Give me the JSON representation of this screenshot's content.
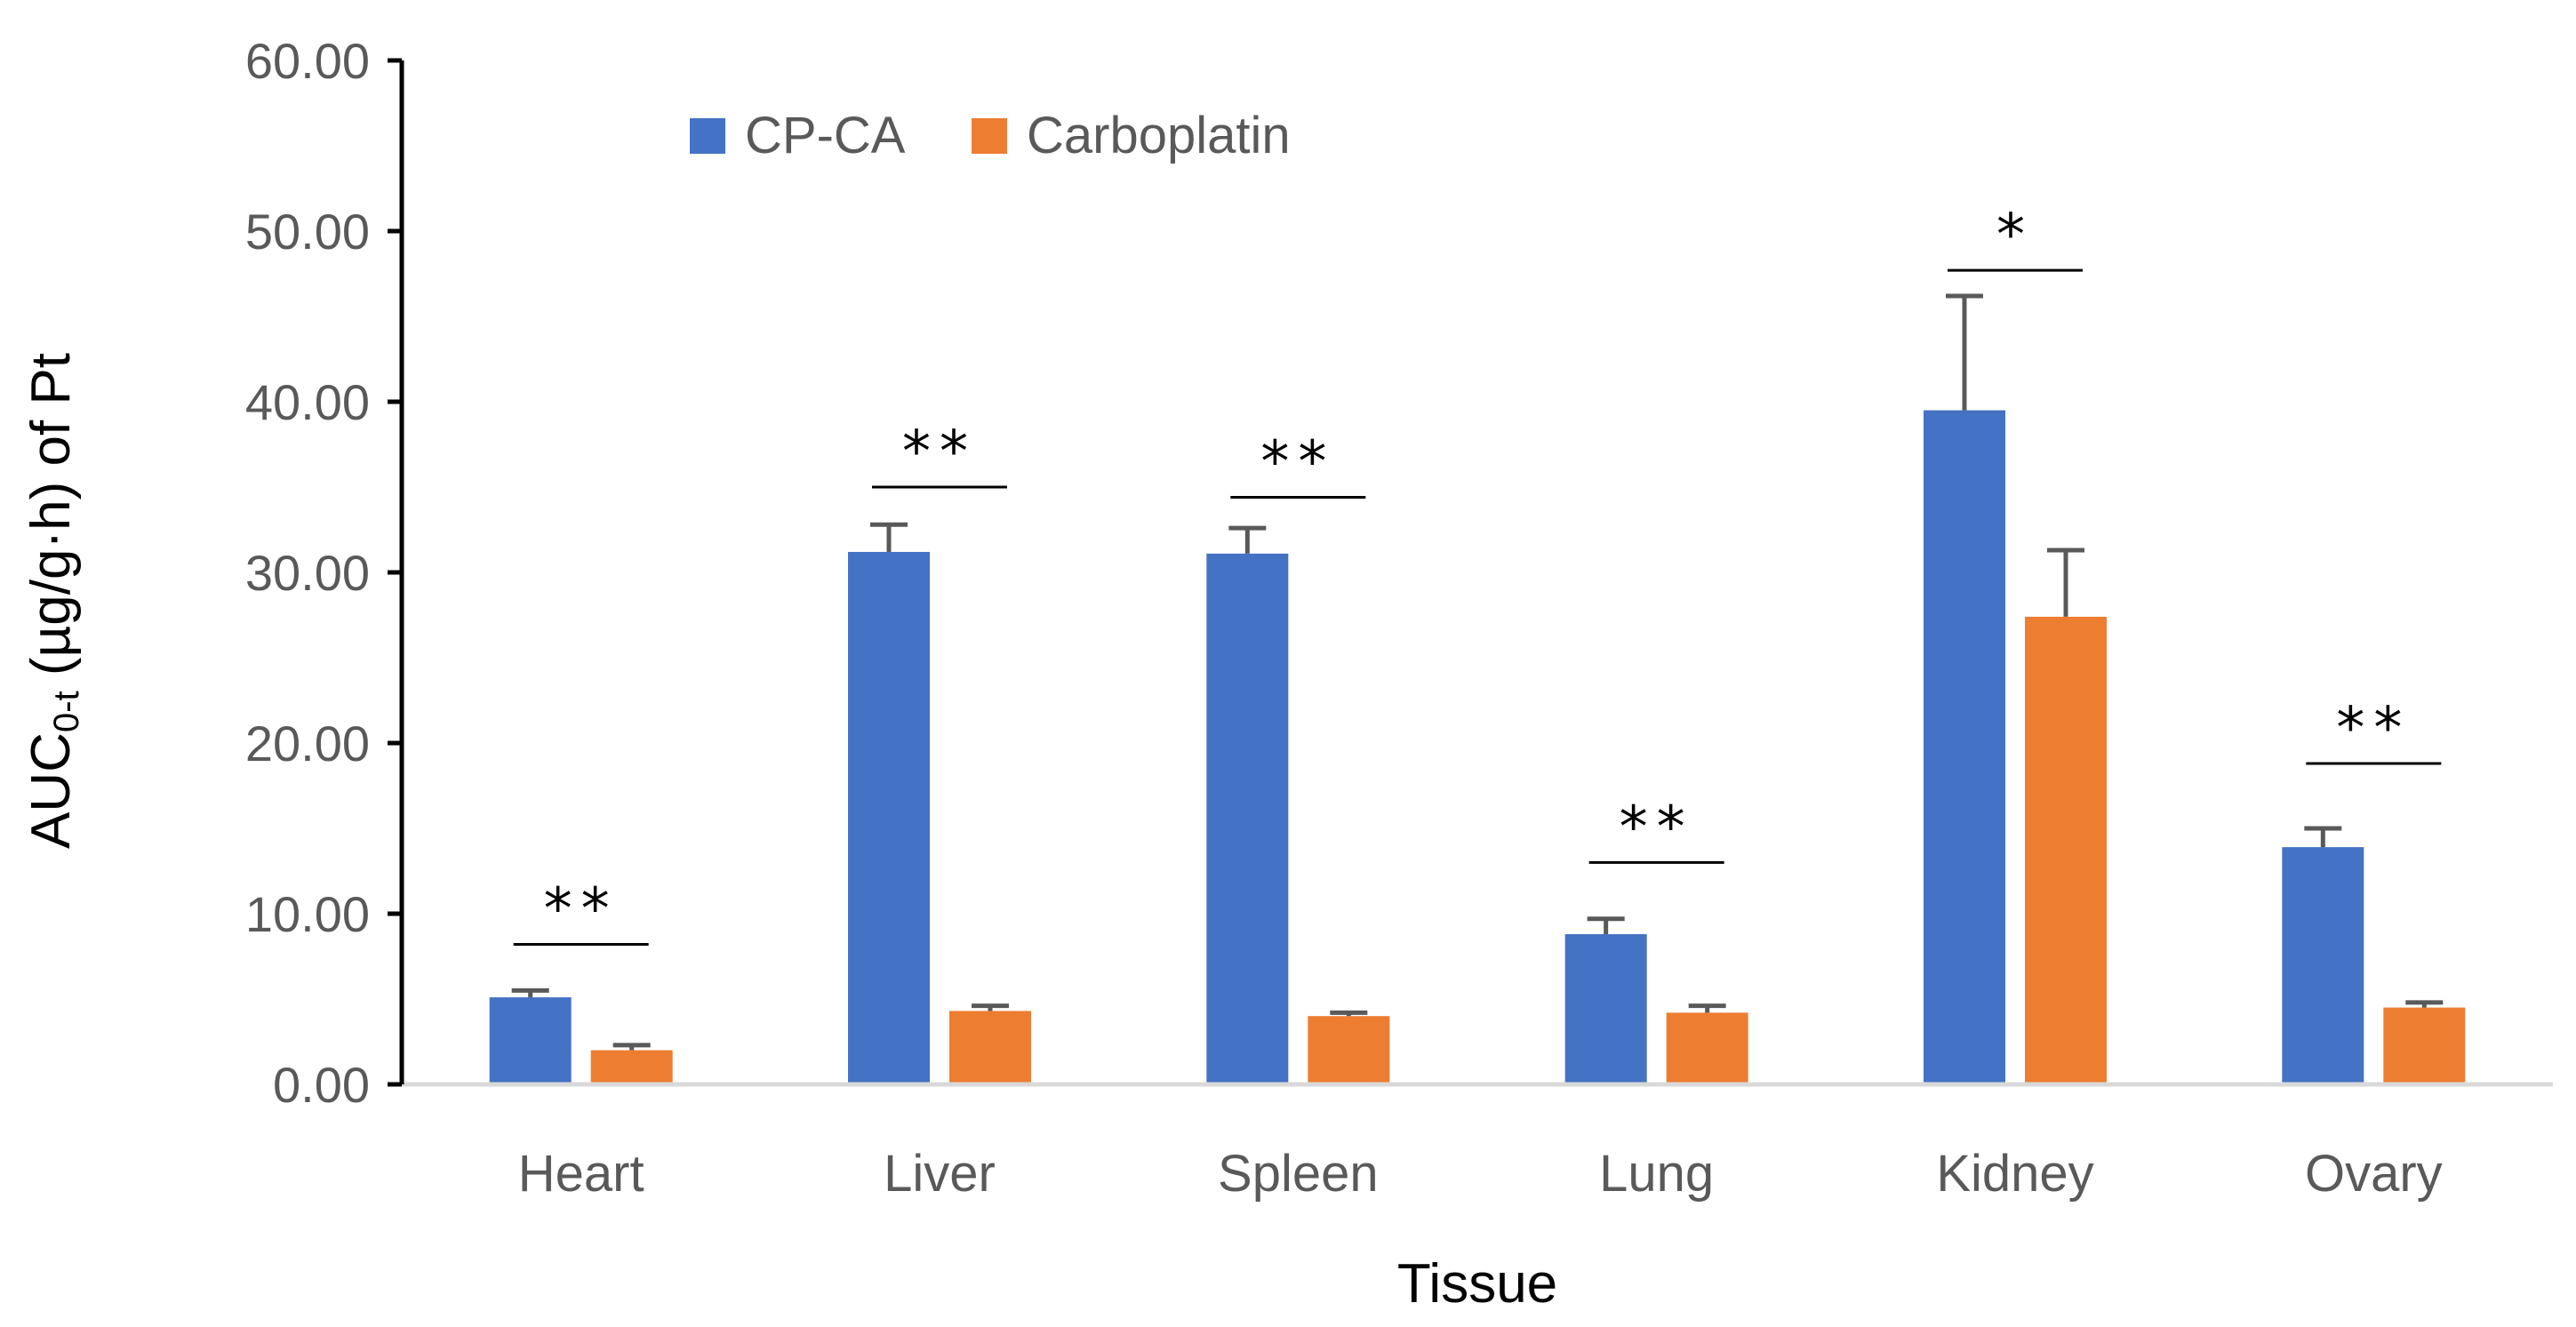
{
  "chart_data": {
    "type": "bar",
    "title": "",
    "xlabel": "Tissue",
    "ylabel": "AUC",
    "ylabel_subscript": "0-t",
    "ylabel_suffix": " (µg/g·h) of Pt",
    "ylim": [
      0,
      60
    ],
    "yticks": [
      "0.00",
      "10.00",
      "20.00",
      "30.00",
      "40.00",
      "50.00",
      "60.00"
    ],
    "grid": false,
    "legend_position": "top-left",
    "categories": [
      "Heart",
      "Liver",
      "Spleen",
      "Lung",
      "Kidney",
      "Ovary"
    ],
    "series": [
      {
        "name": "CP-CA",
        "color": "#4472C4",
        "values": [
          5.1,
          31.2,
          31.1,
          8.8,
          39.5,
          13.9
        ],
        "errors": [
          0.4,
          1.6,
          1.5,
          0.9,
          6.7,
          1.1
        ]
      },
      {
        "name": "Carboplatin",
        "color": "#ED7D31",
        "values": [
          2.0,
          4.3,
          4.0,
          4.2,
          27.4,
          4.5
        ],
        "errors": [
          0.3,
          0.3,
          0.2,
          0.4,
          3.9,
          0.3
        ]
      }
    ],
    "significance": [
      {
        "category": "Heart",
        "label": "**",
        "level": 8.2
      },
      {
        "category": "Liver",
        "label": "**",
        "level": 35.0
      },
      {
        "category": "Spleen",
        "label": "**",
        "level": 34.4
      },
      {
        "category": "Lung",
        "label": "**",
        "level": 13.0
      },
      {
        "category": "Kidney",
        "label": "*",
        "level": 47.7
      },
      {
        "category": "Ovary",
        "label": "**",
        "level": 18.8
      }
    ]
  }
}
